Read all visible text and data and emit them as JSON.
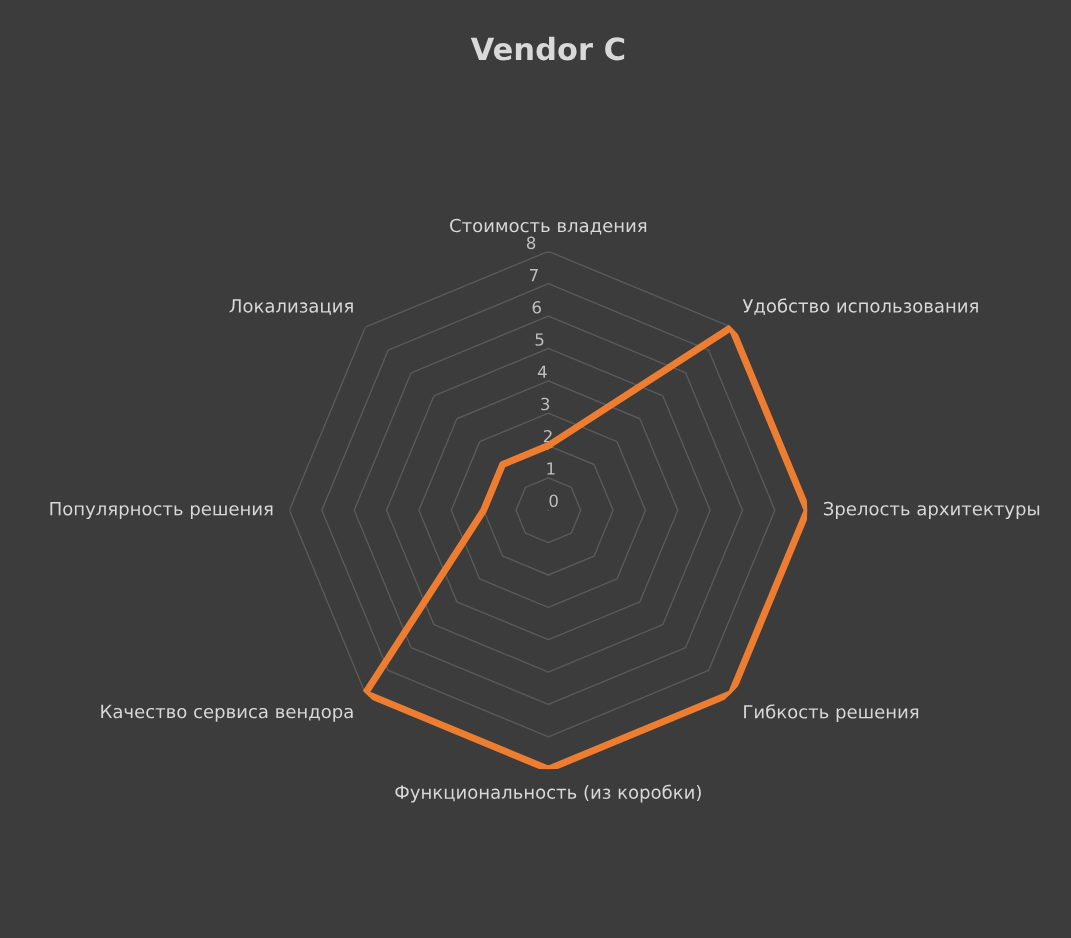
{
  "chart_data": {
    "type": "radar",
    "title": "Vendor C",
    "categories": [
      "Стоимость владения",
      "Удобство использования",
      "Зрелость архитектуры",
      "Гибкость решения",
      "Функциональность (из коробки)",
      "Качество сервиса вендора",
      "Популярность решения",
      "Локализация"
    ],
    "series": [
      {
        "color": "#ed7d31",
        "values": [
          2,
          8,
          8,
          8,
          8,
          8,
          2,
          2
        ]
      }
    ],
    "ylim": [
      0,
      8
    ],
    "yticks": [
      0,
      1,
      2,
      3,
      4,
      5,
      6,
      7,
      8
    ],
    "grid": true,
    "marker": "none"
  }
}
